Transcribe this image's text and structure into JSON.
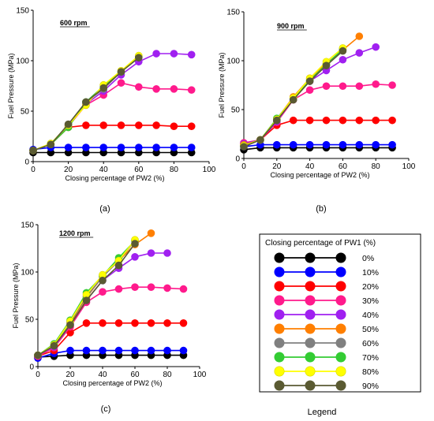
{
  "legend": {
    "title": "Closing percentage of PW1 (%)",
    "caption": "Legend",
    "entries": [
      {
        "label": "0%",
        "color": "#000000"
      },
      {
        "label": "10%",
        "color": "#0000ff"
      },
      {
        "label": "20%",
        "color": "#ff0000"
      },
      {
        "label": "30%",
        "color": "#ff1a8c"
      },
      {
        "label": "40%",
        "color": "#a020f0"
      },
      {
        "label": "50%",
        "color": "#ff7f00"
      },
      {
        "label": "60%",
        "color": "#808080"
      },
      {
        "label": "70%",
        "color": "#33cc33"
      },
      {
        "label": "80%",
        "color": "#ffff00"
      },
      {
        "label": "90%",
        "color": "#5a5a32"
      }
    ]
  },
  "chart_data": [
    {
      "type": "line",
      "panel_caption": "(a)",
      "annotation": "600 rpm",
      "xlabel": "Closing percentage of PW2 (%)",
      "ylabel": "Fuel Pressure (MPa)",
      "xlim": [
        0,
        100
      ],
      "ylim": [
        0,
        150
      ],
      "xticks": [
        "0",
        "20",
        "40",
        "60",
        "80",
        "100"
      ],
      "yticks": [
        "0",
        "50",
        "100",
        "150"
      ],
      "series": [
        {
          "legend": "0%",
          "color": "#000000",
          "x": [
            0,
            10,
            20,
            30,
            40,
            50,
            60,
            70,
            80,
            90
          ],
          "y": [
            9,
            9,
            9,
            9,
            9,
            9,
            9,
            9,
            9,
            9
          ]
        },
        {
          "legend": "10%",
          "color": "#0000ff",
          "x": [
            0,
            10,
            20,
            30,
            40,
            50,
            60,
            70,
            80,
            90
          ],
          "y": [
            12,
            14,
            14,
            14,
            14,
            14,
            14,
            14,
            14,
            14
          ]
        },
        {
          "legend": "20%",
          "color": "#ff0000",
          "x": [
            0,
            10,
            20,
            30,
            40,
            50,
            60,
            70,
            80,
            90
          ],
          "y": [
            11,
            17,
            34,
            36,
            36,
            36,
            36,
            36,
            35,
            35
          ]
        },
        {
          "legend": "30%",
          "color": "#ff1a8c",
          "x": [
            0,
            10,
            20,
            30,
            40,
            50,
            60,
            70,
            80,
            90
          ],
          "y": [
            11,
            17,
            35,
            56,
            66,
            78,
            74,
            72,
            72,
            71
          ]
        },
        {
          "legend": "40%",
          "color": "#a020f0",
          "x": [
            0,
            10,
            20,
            30,
            40,
            50,
            60,
            70,
            80,
            90
          ],
          "y": [
            11,
            17,
            36,
            57,
            70,
            86,
            99,
            107,
            107,
            106
          ]
        },
        {
          "legend": "60%",
          "color": "#808080",
          "x": [
            0,
            10,
            20,
            30,
            40,
            50,
            60
          ],
          "y": [
            11,
            17,
            37,
            59,
            72,
            89,
            104
          ]
        },
        {
          "legend": "70%",
          "color": "#33cc33",
          "x": [
            0,
            10,
            20,
            30,
            40,
            50,
            60
          ],
          "y": [
            11,
            17,
            34,
            59,
            75,
            89,
            104
          ]
        },
        {
          "legend": "80%",
          "color": "#ffff00",
          "x": [
            0,
            10,
            20,
            30,
            40,
            50,
            60
          ],
          "y": [
            11,
            18,
            36,
            56,
            76,
            90,
            105
          ]
        },
        {
          "legend": "90%",
          "color": "#5a5a32",
          "x": [
            0,
            10,
            20,
            30,
            40,
            50,
            60
          ],
          "y": [
            11,
            17,
            37,
            59,
            73,
            89,
            103
          ]
        }
      ]
    },
    {
      "type": "line",
      "panel_caption": "(b)",
      "annotation": "900 rpm",
      "xlabel": "Closing percentage of PW2 (%)",
      "ylabel": "Fuel Pressure (MPa)",
      "xlim": [
        0,
        100
      ],
      "ylim": [
        0,
        150
      ],
      "xticks": [
        "0",
        "20",
        "40",
        "60",
        "80",
        "100"
      ],
      "yticks": [
        "0",
        "50",
        "100",
        "150"
      ],
      "series": [
        {
          "legend": "0%",
          "color": "#000000",
          "x": [
            0,
            10,
            20,
            30,
            40,
            50,
            60,
            70,
            80,
            90
          ],
          "y": [
            9,
            11,
            11,
            11,
            11,
            11,
            11,
            11,
            11,
            11
          ]
        },
        {
          "legend": "10%",
          "color": "#0000ff",
          "x": [
            0,
            10,
            20,
            30,
            40,
            50,
            60,
            70,
            80,
            90
          ],
          "y": [
            12,
            14,
            14,
            14,
            14,
            14,
            14,
            14,
            14,
            14
          ]
        },
        {
          "legend": "20%",
          "color": "#ff0000",
          "x": [
            0,
            10,
            20,
            30,
            40,
            50,
            60,
            70,
            80,
            90
          ],
          "y": [
            15,
            19,
            34,
            39,
            39,
            39,
            39,
            39,
            39,
            39
          ]
        },
        {
          "legend": "30%",
          "color": "#ff1a8c",
          "x": [
            0,
            10,
            20,
            30,
            40,
            50,
            60,
            70,
            80,
            90
          ],
          "y": [
            16,
            19,
            37,
            60,
            70,
            74,
            74,
            74,
            76,
            75
          ]
        },
        {
          "legend": "40%",
          "color": "#a020f0",
          "x": [
            0,
            10,
            20,
            30,
            40,
            50,
            60,
            70,
            80
          ],
          "y": [
            15,
            19,
            38,
            61,
            79,
            90,
            101,
            108,
            114
          ]
        },
        {
          "legend": "50%",
          "color": "#ff7f00",
          "x": [
            0,
            10,
            20,
            30,
            40,
            50,
            60,
            70
          ],
          "y": [
            14,
            19,
            40,
            63,
            82,
            97,
            111,
            125
          ]
        },
        {
          "legend": "60%",
          "color": "#808080",
          "x": [
            0,
            10,
            20,
            30,
            40,
            50,
            60
          ],
          "y": [
            13,
            19,
            39,
            61,
            80,
            96,
            111
          ]
        },
        {
          "legend": "70%",
          "color": "#33cc33",
          "x": [
            0,
            10,
            20,
            30,
            40,
            50,
            60
          ],
          "y": [
            13,
            19,
            41,
            61,
            80,
            96,
            112
          ]
        },
        {
          "legend": "80%",
          "color": "#ffff00",
          "x": [
            0,
            10,
            20,
            30,
            40,
            50,
            60
          ],
          "y": [
            13,
            19,
            40,
            62,
            82,
            99,
            113
          ]
        },
        {
          "legend": "90%",
          "color": "#5a5a32",
          "x": [
            0,
            10,
            20,
            30,
            40,
            50,
            60
          ],
          "y": [
            12,
            19,
            39,
            60,
            79,
            95,
            110
          ]
        }
      ]
    },
    {
      "type": "line",
      "panel_caption": "(c)",
      "annotation": "1200 rpm",
      "xlabel": "Closing percentage of PW2 (%)",
      "ylabel": "Fuel Pressure (MPa)",
      "xlim": [
        0,
        100
      ],
      "ylim": [
        0,
        150
      ],
      "xticks": [
        "0",
        "20",
        "40",
        "60",
        "80",
        "100"
      ],
      "yticks": [
        "0",
        "50",
        "100",
        "150"
      ],
      "series": [
        {
          "legend": "0%",
          "color": "#000000",
          "x": [
            0,
            10,
            20,
            30,
            40,
            50,
            60,
            70,
            80,
            90
          ],
          "y": [
            10,
            11,
            12,
            12,
            12,
            12,
            12,
            12,
            12,
            12
          ]
        },
        {
          "legend": "10%",
          "color": "#0000ff",
          "x": [
            0,
            10,
            20,
            30,
            40,
            50,
            60,
            70,
            80,
            90
          ],
          "y": [
            9,
            14,
            17,
            17,
            17,
            17,
            17,
            17,
            17,
            17
          ]
        },
        {
          "legend": "20%",
          "color": "#ff0000",
          "x": [
            0,
            10,
            20,
            30,
            40,
            50,
            60,
            70,
            80,
            90
          ],
          "y": [
            11,
            17,
            36,
            46,
            46,
            46,
            46,
            46,
            46,
            46
          ]
        },
        {
          "legend": "30%",
          "color": "#ff1a8c",
          "x": [
            0,
            10,
            20,
            30,
            40,
            50,
            60,
            70,
            80,
            90
          ],
          "y": [
            11,
            20,
            42,
            68,
            79,
            82,
            84,
            84,
            83,
            82
          ]
        },
        {
          "legend": "40%",
          "color": "#a020f0",
          "x": [
            0,
            10,
            20,
            30,
            40,
            50,
            60,
            70,
            80
          ],
          "y": [
            12,
            21,
            44,
            70,
            91,
            104,
            116,
            120,
            120
          ]
        },
        {
          "legend": "50%",
          "color": "#ff7f00",
          "x": [
            0,
            10,
            20,
            30,
            40,
            50,
            60,
            70
          ],
          "y": [
            12,
            22,
            46,
            73,
            95,
            112,
            129,
            141
          ]
        },
        {
          "legend": "60%",
          "color": "#808080",
          "x": [
            0,
            10,
            20,
            30,
            40,
            50,
            60
          ],
          "y": [
            12,
            22,
            47,
            74,
            95,
            112,
            133
          ]
        },
        {
          "legend": "70%",
          "color": "#33cc33",
          "x": [
            0,
            10,
            20,
            30,
            40,
            50,
            60
          ],
          "y": [
            12,
            24,
            49,
            78,
            96,
            115,
            133
          ]
        },
        {
          "legend": "80%",
          "color": "#ffff00",
          "x": [
            0,
            10,
            20,
            30,
            40,
            50,
            60
          ],
          "y": [
            12,
            23,
            48,
            76,
            97,
            112,
            134
          ]
        },
        {
          "legend": "90%",
          "color": "#5a5a32",
          "x": [
            0,
            10,
            20,
            30,
            40,
            50,
            60
          ],
          "y": [
            12,
            22,
            44,
            70,
            91,
            107,
            130
          ]
        }
      ]
    }
  ]
}
